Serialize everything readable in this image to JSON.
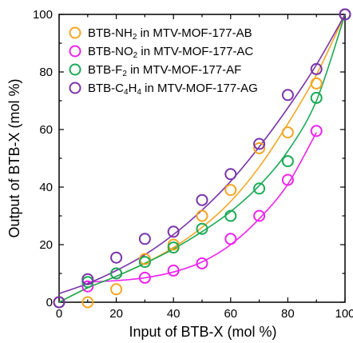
{
  "chart_data": {
    "type": "scatter",
    "xlabel": "Input of BTB-X (mol %)",
    "ylabel": "Output of BTB-X (mol %)",
    "xlim": [
      0,
      100
    ],
    "ylim": [
      0,
      100
    ],
    "xticks": [
      0,
      20,
      40,
      60,
      80,
      100
    ],
    "yticks": [
      0,
      20,
      40,
      60,
      80,
      100
    ],
    "grid": false,
    "legend_position": "top-left",
    "series": [
      {
        "legend_parts": [
          "BTB-NH",
          "2",
          " in MTV-MOF-177-AB"
        ],
        "color": "#f5a623",
        "x": [
          0,
          10,
          20,
          30,
          40,
          50,
          60,
          70,
          80,
          90,
          100
        ],
        "y": [
          0,
          0,
          4.5,
          15,
          20,
          30,
          39,
          53.5,
          59,
          76,
          100
        ],
        "fit": [
          [
            0,
            0
          ],
          [
            10,
            5
          ],
          [
            20,
            9
          ],
          [
            30,
            13.5
          ],
          [
            40,
            19
          ],
          [
            50,
            26
          ],
          [
            60,
            35
          ],
          [
            70,
            47
          ],
          [
            80,
            62
          ],
          [
            90,
            79
          ],
          [
            100,
            100
          ]
        ]
      },
      {
        "legend_parts": [
          "BTB-NO",
          "2",
          " in MTV-MOF-177-AC"
        ],
        "color": "#ee22ee",
        "x": [
          0,
          10,
          20,
          30,
          40,
          50,
          60,
          70,
          80,
          90,
          100
        ],
        "y": [
          0,
          5.5,
          10,
          8.5,
          11,
          13.5,
          22,
          30,
          42.5,
          59.5,
          100
        ],
        "fit": [
          [
            10,
            7
          ],
          [
            20,
            7.5
          ],
          [
            30,
            8.5
          ],
          [
            40,
            10.5
          ],
          [
            50,
            14
          ],
          [
            60,
            20
          ],
          [
            70,
            29
          ],
          [
            80,
            41
          ],
          [
            90,
            59
          ]
        ]
      },
      {
        "legend_parts": [
          "BTB-F",
          "2",
          "    in MTV-MOF-177-AF"
        ],
        "color": "#1aaa55",
        "x": [
          0,
          10,
          20,
          30,
          40,
          50,
          60,
          70,
          80,
          90,
          100
        ],
        "y": [
          0,
          7,
          10,
          14,
          19,
          25.5,
          30,
          39.5,
          49,
          71,
          100
        ],
        "fit": [
          [
            0,
            0
          ],
          [
            10,
            5
          ],
          [
            20,
            9
          ],
          [
            30,
            13.5
          ],
          [
            40,
            18.5
          ],
          [
            50,
            24.5
          ],
          [
            60,
            31.5
          ],
          [
            70,
            40.5
          ],
          [
            80,
            52.5
          ],
          [
            90,
            70
          ],
          [
            100,
            100
          ]
        ]
      },
      {
        "legend_parts": [
          "BTB-C",
          "4",
          "H",
          "4",
          " in MTV-MOF-177-AG"
        ],
        "color": "#7a33a8",
        "x": [
          0,
          10,
          20,
          30,
          40,
          50,
          60,
          70,
          80,
          90,
          100
        ],
        "y": [
          0,
          8,
          15.5,
          22,
          24.5,
          35.5,
          44.5,
          55,
          72,
          81,
          100
        ],
        "fit": [
          [
            0,
            3
          ],
          [
            10,
            6.5
          ],
          [
            20,
            11
          ],
          [
            30,
            16.5
          ],
          [
            40,
            23.5
          ],
          [
            50,
            32
          ],
          [
            60,
            42
          ],
          [
            70,
            54
          ],
          [
            80,
            67.5
          ],
          [
            90,
            82.5
          ],
          [
            100,
            100
          ]
        ]
      }
    ]
  }
}
